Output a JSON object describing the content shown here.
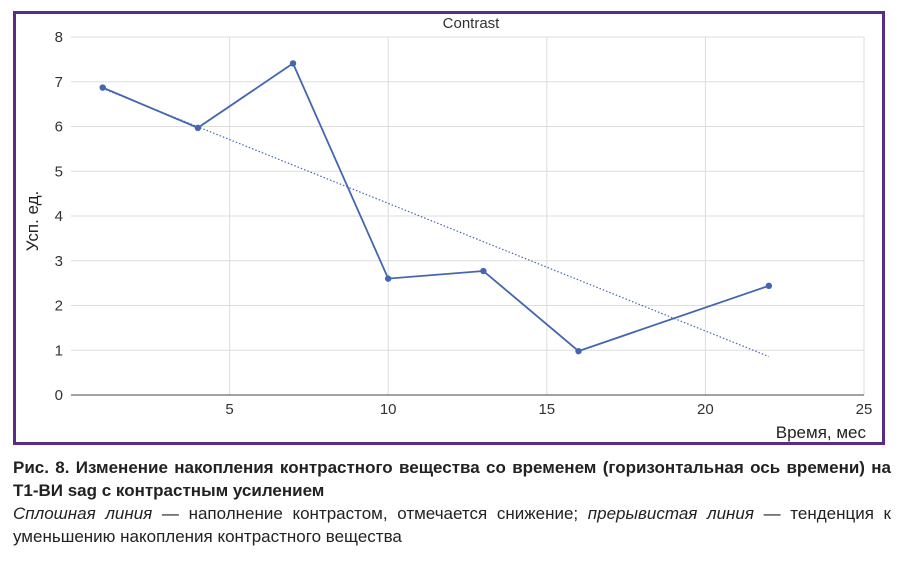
{
  "chart_data": {
    "type": "line",
    "title": "Contrast",
    "xlabel": "Время, мес",
    "ylabel": "Усп. ед.",
    "xlim": [
      0,
      25
    ],
    "ylim": [
      0,
      8
    ],
    "x_ticks": [
      5,
      10,
      15,
      20,
      25
    ],
    "y_ticks": [
      0,
      1,
      2,
      3,
      4,
      5,
      6,
      7,
      8
    ],
    "grid": true,
    "series": [
      {
        "style": "solid",
        "color": "#4466b0",
        "points": [
          {
            "x": 1,
            "y": 6.87
          },
          {
            "x": 4,
            "y": 5.97
          },
          {
            "x": 7,
            "y": 7.41
          },
          {
            "x": 10,
            "y": 2.6
          },
          {
            "x": 13,
            "y": 2.77
          },
          {
            "x": 16,
            "y": 0.98
          },
          {
            "x": 22,
            "y": 2.44
          }
        ]
      },
      {
        "style": "dotted",
        "color": "#4466b0",
        "points": [
          {
            "x": 1,
            "y": 6.85
          },
          {
            "x": 22,
            "y": 0.86
          }
        ]
      }
    ]
  },
  "caption": {
    "title": "Рис. 8. Изменение накопления контрастного вещества со временем (горизонтальная ось времени) на Т1-ВИ sag с контрастным усилением",
    "solid_term": "Сплошная линия",
    "solid_desc": " — наполнение контрастом, отмечается снижение; ",
    "dashed_term": "прерывистая линия",
    "dashed_desc": " — тенденция к уменьшению накопления контрастного вещества"
  },
  "colors": {
    "frame": "#5b2c83",
    "grid": "#dddddd",
    "axis": "#444444",
    "line": "#4466b0"
  }
}
